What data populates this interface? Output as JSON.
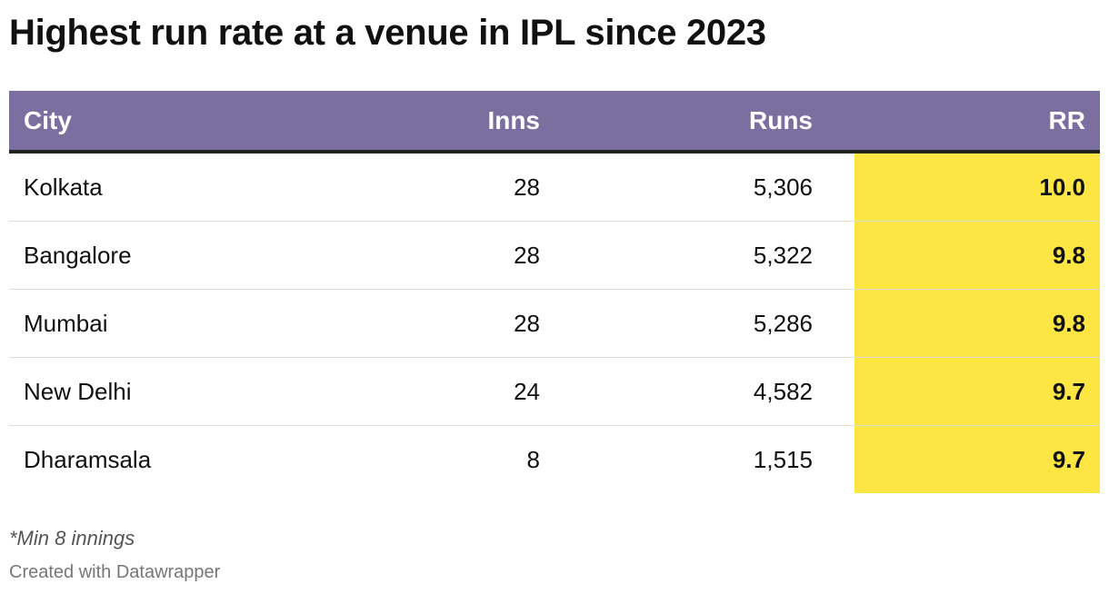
{
  "title": "Highest run rate at a venue in IPL since 2023",
  "colors": {
    "header_bg": "#7b6fa0",
    "header_text": "#ffffff",
    "highlight": "#fde643"
  },
  "table": {
    "headers": [
      "City",
      "Inns",
      "Runs",
      "RR"
    ],
    "rows": [
      [
        "Kolkata",
        "28",
        "5,306",
        "10.0"
      ],
      [
        "Bangalore",
        "28",
        "5,322",
        "9.8"
      ],
      [
        "Mumbai",
        "28",
        "5,286",
        "9.8"
      ],
      [
        "New Delhi",
        "24",
        "4,582",
        "9.7"
      ],
      [
        "Dharamsala",
        "8",
        "1,515",
        "9.7"
      ]
    ]
  },
  "chart_data": {
    "type": "table",
    "title": "Highest run rate at a venue in IPL since 2023",
    "columns": [
      "City",
      "Inns",
      "Runs",
      "RR"
    ],
    "rows": [
      {
        "City": "Kolkata",
        "Inns": 28,
        "Runs": 5306,
        "RR": 10.0
      },
      {
        "City": "Bangalore",
        "Inns": 28,
        "Runs": 5322,
        "RR": 9.8
      },
      {
        "City": "Mumbai",
        "Inns": 28,
        "Runs": 5286,
        "RR": 9.8
      },
      {
        "City": "New Delhi",
        "Inns": 24,
        "Runs": 4582,
        "RR": 9.7
      },
      {
        "City": "Dharamsala",
        "Inns": 8,
        "Runs": 1515,
        "RR": 9.7
      }
    ],
    "highlighted_column": "RR"
  },
  "footnote": "*Min 8 innings",
  "credit": "Created with Datawrapper"
}
